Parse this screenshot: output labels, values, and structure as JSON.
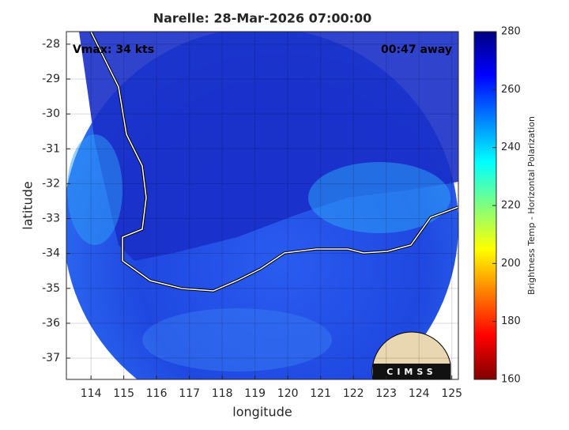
{
  "chart_data": {
    "type": "swath",
    "title": "Narelle: 28-Mar-2026 07:00:00",
    "annotations": [
      "Vmax: 34 kts",
      "00:47 away"
    ],
    "logo_text": "CIMSS",
    "xlabel": "longitude",
    "ylabel": "latitude",
    "xlim": [
      113.25,
      125.2
    ],
    "xticks": [
      114,
      115,
      116,
      117,
      118,
      119,
      120,
      121,
      122,
      123,
      124,
      125
    ],
    "ylim": [
      -37.61,
      -27.64
    ],
    "yticks": [
      -37,
      -36,
      -35,
      -34,
      -33,
      -32,
      -31,
      -30,
      -29,
      -28
    ],
    "grid": true,
    "colorbar": {
      "label": "Brightness Temp - Horizontal Polarization",
      "lim": [
        160,
        280
      ],
      "ticks": [
        160,
        180,
        200,
        220,
        240,
        260,
        280
      ],
      "colormap": "jet"
    }
  }
}
